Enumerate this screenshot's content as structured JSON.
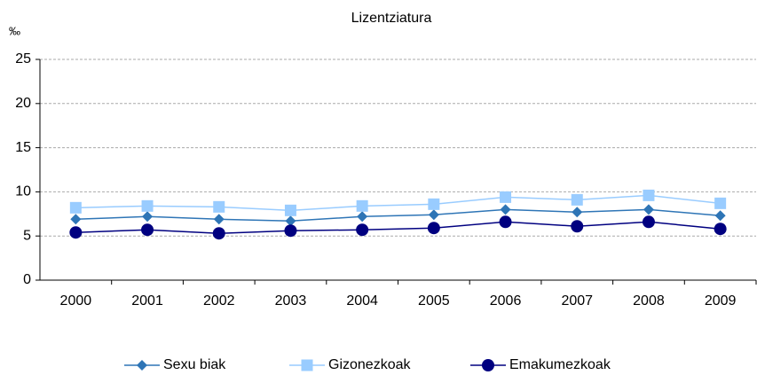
{
  "chart_data": {
    "type": "line",
    "title": "Lizentziatura",
    "ylabel": "‰",
    "categories": [
      "2000",
      "2001",
      "2002",
      "2003",
      "2004",
      "2005",
      "2006",
      "2007",
      "2008",
      "2009"
    ],
    "series": [
      {
        "name": "Sexu biak",
        "color": "#2e75b6",
        "marker": "diamond",
        "values": [
          6.9,
          7.2,
          6.9,
          6.7,
          7.2,
          7.4,
          8.0,
          7.7,
          8.0,
          7.3
        ]
      },
      {
        "name": "Gizonezkoak",
        "color": "#99ccff",
        "marker": "square",
        "values": [
          8.2,
          8.4,
          8.3,
          7.9,
          8.4,
          8.6,
          9.4,
          9.1,
          9.6,
          8.7
        ]
      },
      {
        "name": "Emakumezkoak",
        "color": "#000080",
        "marker": "circle",
        "values": [
          5.4,
          5.7,
          5.3,
          5.6,
          5.7,
          5.9,
          6.6,
          6.1,
          6.6,
          5.8
        ]
      }
    ],
    "ylim": [
      0,
      25
    ],
    "yticks": [
      0,
      5,
      10,
      15,
      20,
      25
    ],
    "grid": true,
    "legend": "bottom"
  }
}
